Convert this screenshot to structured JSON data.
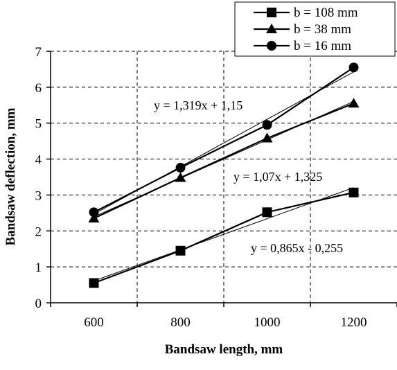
{
  "chart_data": {
    "type": "line",
    "title": "",
    "xlabel": "Bandsaw length, mm",
    "ylabel": "Bandsaw deflection, mm",
    "x": [
      600,
      800,
      1000,
      1200
    ],
    "x_ticks": [
      "600",
      "800",
      "1000",
      "1200"
    ],
    "xlim": [
      500,
      1300
    ],
    "ylim": [
      0,
      7
    ],
    "y_ticks": [
      "0",
      "1",
      "2",
      "3",
      "4",
      "5",
      "6",
      "7"
    ],
    "grid": true,
    "legend_position": "top-right",
    "series": [
      {
        "name": "b = 108 mm",
        "marker": "square",
        "values": [
          0.55,
          1.45,
          2.52,
          3.07
        ],
        "trend": {
          "slope": 0.865,
          "intercept": -0.255,
          "label": "y = 0,865x - 0,255"
        }
      },
      {
        "name": "b = 38 mm",
        "marker": "triangle",
        "values": [
          2.35,
          3.48,
          4.58,
          5.55
        ],
        "trend": {
          "slope": 1.07,
          "intercept": 1.325,
          "label": "y = 1,07x + 1,325"
        }
      },
      {
        "name": "b = 16 mm",
        "marker": "circle",
        "values": [
          2.52,
          3.76,
          4.95,
          6.55
        ],
        "trend": {
          "slope": 1.319,
          "intercept": 1.15,
          "label": "y = 1,319x + 1,15"
        }
      }
    ]
  }
}
